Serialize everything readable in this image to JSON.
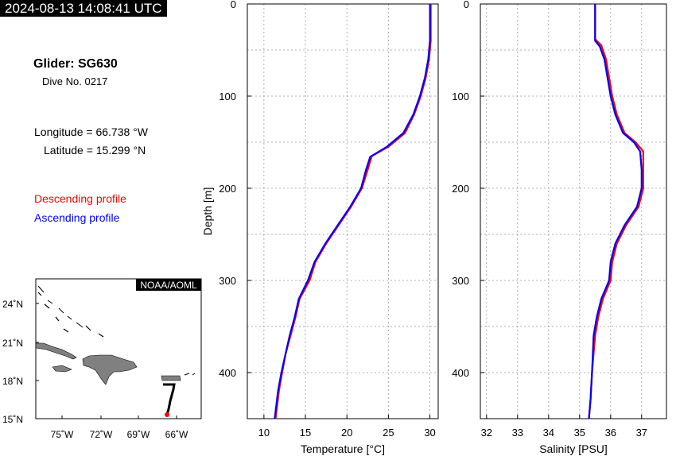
{
  "timestamp": "2024-08-13 14:08:41 UTC",
  "info": {
    "glider": "Glider: SG630",
    "dive": "Dive No. 0217",
    "longitude": "Longitude = 66.738 °W",
    "latitude": "Latitude = 15.299 °N",
    "descending_label": "Descending profile",
    "ascending_label": "Ascending profile"
  },
  "colors": {
    "descending": "#ff0000",
    "ascending": "#0000ff",
    "grid": "#999999",
    "land": "#808080",
    "track": "#000000"
  },
  "chart_data": [
    {
      "type": "line",
      "xlabel": "Temperature [°C]",
      "ylabel": "Depth [m]",
      "xlim": [
        8,
        31
      ],
      "ylim": [
        0,
        450
      ],
      "y_inverted": true,
      "xticks": [
        10,
        15,
        20,
        25,
        30
      ],
      "yticks": [
        0,
        100,
        200,
        300,
        400
      ],
      "grid": true,
      "series": [
        {
          "name": "Descending profile",
          "color": "#ff0000",
          "points": [
            [
              30.1,
              0
            ],
            [
              30.1,
              40
            ],
            [
              29.9,
              60
            ],
            [
              29.5,
              80
            ],
            [
              28.9,
              100
            ],
            [
              28.1,
              120
            ],
            [
              27.0,
              140
            ],
            [
              25.0,
              155
            ],
            [
              23.0,
              165
            ],
            [
              22.5,
              180
            ],
            [
              21.8,
              200
            ],
            [
              20.5,
              220
            ],
            [
              19.0,
              240
            ],
            [
              17.5,
              260
            ],
            [
              16.2,
              280
            ],
            [
              15.5,
              300
            ],
            [
              14.3,
              320
            ],
            [
              13.8,
              340
            ],
            [
              13.2,
              360
            ],
            [
              12.6,
              380
            ],
            [
              12.2,
              400
            ],
            [
              11.8,
              420
            ],
            [
              11.4,
              450
            ]
          ]
        },
        {
          "name": "Ascending profile",
          "color": "#0000ff",
          "points": [
            [
              30.0,
              0
            ],
            [
              30.0,
              40
            ],
            [
              29.8,
              60
            ],
            [
              29.4,
              80
            ],
            [
              28.8,
              100
            ],
            [
              28.0,
              120
            ],
            [
              26.8,
              140
            ],
            [
              24.8,
              155
            ],
            [
              22.8,
              166
            ],
            [
              22.3,
              180
            ],
            [
              21.7,
              200
            ],
            [
              20.4,
              220
            ],
            [
              18.9,
              240
            ],
            [
              17.4,
              260
            ],
            [
              16.1,
              280
            ],
            [
              15.3,
              300
            ],
            [
              14.2,
              320
            ],
            [
              13.7,
              340
            ],
            [
              13.1,
              360
            ],
            [
              12.6,
              380
            ],
            [
              12.1,
              400
            ],
            [
              11.7,
              420
            ],
            [
              11.3,
              450
            ]
          ]
        }
      ]
    },
    {
      "type": "line",
      "xlabel": "Salinity [PSU]",
      "ylabel": "",
      "xlim": [
        31.8,
        37.8
      ],
      "ylim": [
        0,
        450
      ],
      "y_inverted": true,
      "xticks": [
        32,
        33,
        34,
        35,
        36,
        37
      ],
      "yticks": [
        0,
        100,
        200,
        300,
        400
      ],
      "grid": true,
      "series": [
        {
          "name": "Descending profile",
          "color": "#ff0000",
          "points": [
            [
              35.5,
              0
            ],
            [
              35.5,
              38
            ],
            [
              35.7,
              45
            ],
            [
              35.85,
              60
            ],
            [
              35.95,
              80
            ],
            [
              36.05,
              100
            ],
            [
              36.2,
              120
            ],
            [
              36.45,
              140
            ],
            [
              36.8,
              150
            ],
            [
              37.05,
              160
            ],
            [
              37.05,
              180
            ],
            [
              37.05,
              200
            ],
            [
              36.9,
              220
            ],
            [
              36.5,
              240
            ],
            [
              36.2,
              260
            ],
            [
              36.05,
              280
            ],
            [
              36.0,
              300
            ],
            [
              35.75,
              320
            ],
            [
              35.6,
              340
            ],
            [
              35.5,
              360
            ],
            [
              35.4,
              400
            ],
            [
              35.35,
              430
            ],
            [
              35.3,
              450
            ]
          ]
        },
        {
          "name": "Ascending profile",
          "color": "#0000ff",
          "points": [
            [
              35.5,
              0
            ],
            [
              35.5,
              40
            ],
            [
              35.65,
              46
            ],
            [
              35.8,
              60
            ],
            [
              35.9,
              80
            ],
            [
              36.0,
              100
            ],
            [
              36.15,
              120
            ],
            [
              36.4,
              140
            ],
            [
              36.75,
              150
            ],
            [
              36.95,
              160
            ],
            [
              37.0,
              180
            ],
            [
              37.0,
              200
            ],
            [
              36.85,
              220
            ],
            [
              36.45,
              240
            ],
            [
              36.15,
              260
            ],
            [
              36.0,
              280
            ],
            [
              35.95,
              300
            ],
            [
              35.7,
              320
            ],
            [
              35.55,
              340
            ],
            [
              35.45,
              360
            ],
            [
              35.4,
              400
            ],
            [
              35.35,
              430
            ],
            [
              35.3,
              450
            ]
          ]
        }
      ]
    }
  ],
  "map": {
    "credit": "NOAA/AOML",
    "lat_ticks": [
      "24˚N",
      "21˚N",
      "18˚N",
      "15˚N"
    ],
    "lon_ticks": [
      "75˚W",
      "72˚W",
      "69˚W",
      "66˚W"
    ]
  }
}
